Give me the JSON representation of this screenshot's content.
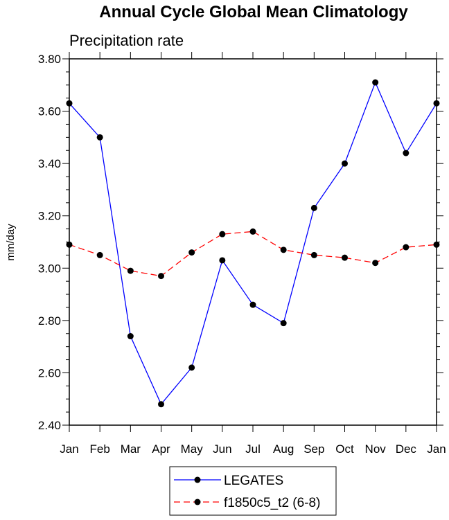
{
  "chart_data": {
    "type": "line",
    "title": "Annual Cycle Global Mean Climatology",
    "subtitle": "Precipitation rate",
    "xlabel": "",
    "ylabel": "mm/day",
    "categories": [
      "Jan",
      "Feb",
      "Mar",
      "Apr",
      "May",
      "Jun",
      "Jul",
      "Aug",
      "Sep",
      "Oct",
      "Nov",
      "Dec",
      "Jan"
    ],
    "ylim": [
      2.4,
      3.8
    ],
    "yticks": [
      "2.40",
      "2.60",
      "2.80",
      "3.00",
      "3.20",
      "3.40",
      "3.60",
      "3.80"
    ],
    "legend_placement": "bottom-center",
    "grid": false,
    "series": [
      {
        "name": "LEGATES",
        "color": "#0000ff",
        "dash": "solid",
        "marker": "circle",
        "values": [
          3.63,
          3.5,
          2.74,
          2.48,
          2.62,
          3.03,
          2.86,
          2.79,
          3.23,
          3.4,
          3.71,
          3.44,
          3.63
        ]
      },
      {
        "name": "f1850c5_t2 (6-8)",
        "color": "#ff0000",
        "dash": "dashed",
        "marker": "circle",
        "values": [
          3.09,
          3.05,
          2.99,
          2.97,
          3.06,
          3.13,
          3.14,
          3.07,
          3.05,
          3.04,
          3.02,
          3.08,
          3.09
        ]
      }
    ]
  }
}
